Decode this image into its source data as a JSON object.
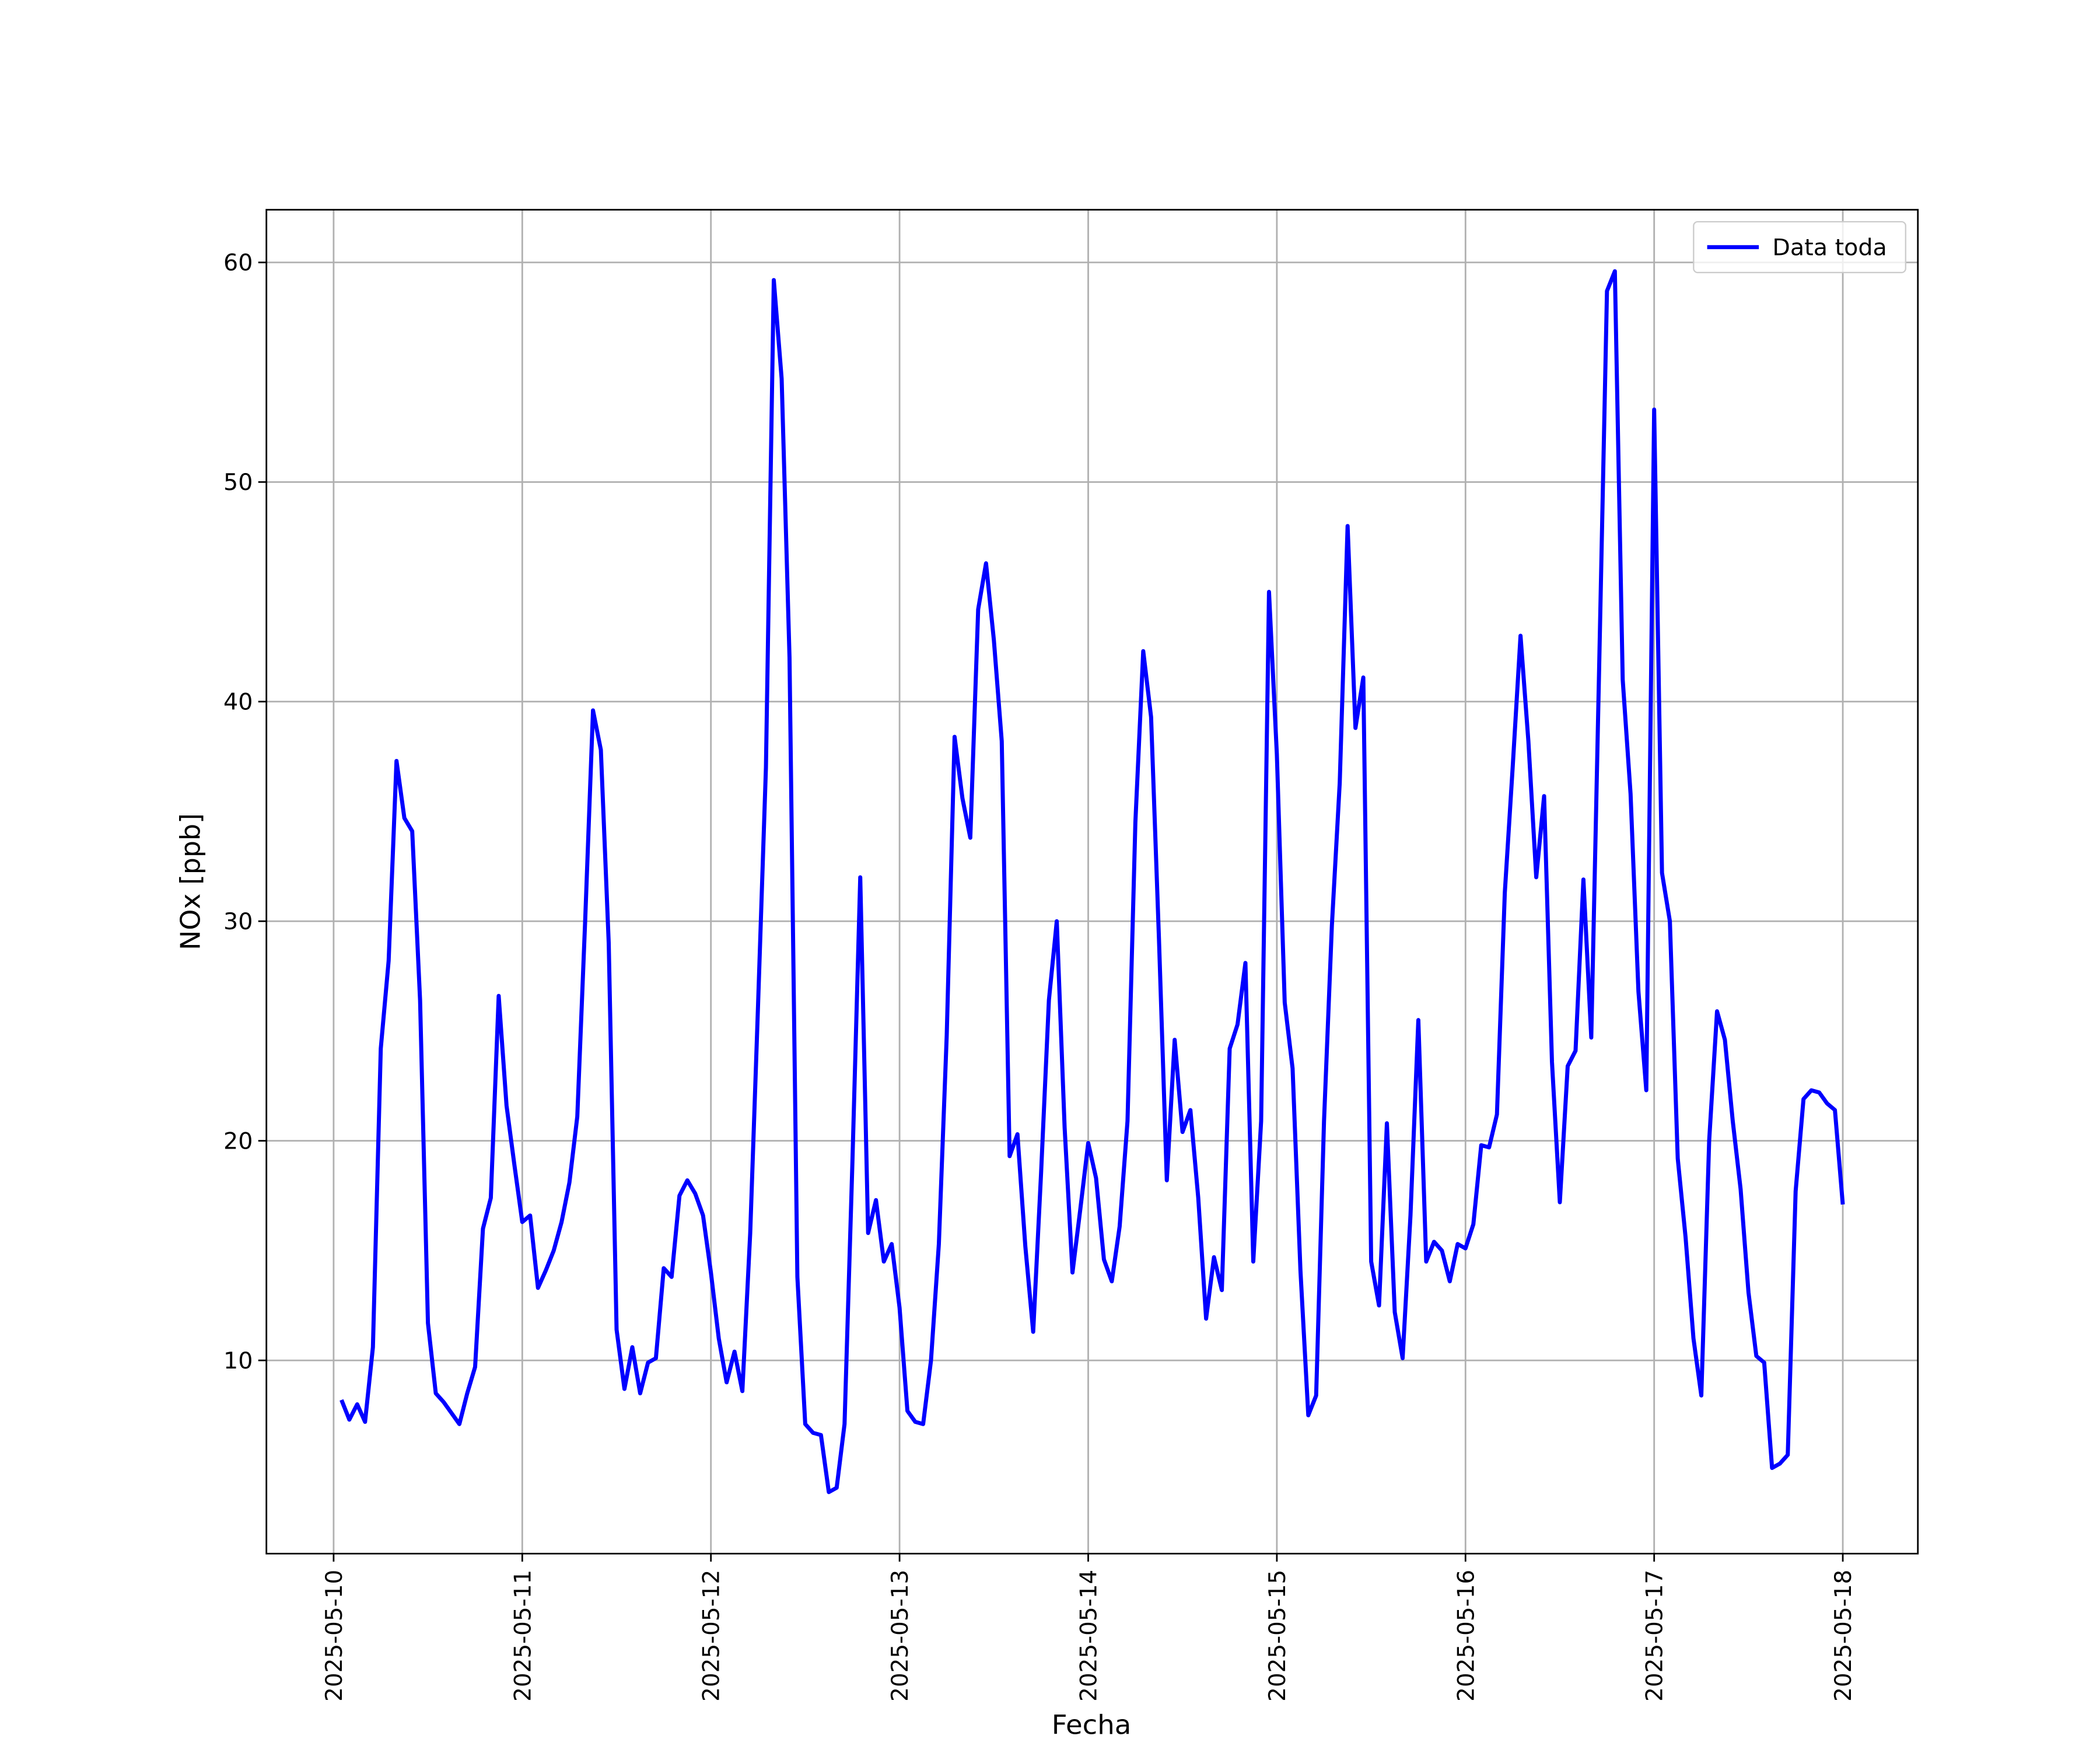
{
  "chart_data": {
    "type": "line",
    "x_label": "Fecha",
    "y_label": "NOx [ppb]",
    "x": [
      "2025-05-10 01:00",
      "2025-05-10 02:00",
      "2025-05-10 03:00",
      "2025-05-10 04:00",
      "2025-05-10 05:00",
      "2025-05-10 06:00",
      "2025-05-10 07:00",
      "2025-05-10 08:00",
      "2025-05-10 09:00",
      "2025-05-10 10:00",
      "2025-05-10 11:00",
      "2025-05-10 12:00",
      "2025-05-10 13:00",
      "2025-05-10 14:00",
      "2025-05-10 15:00",
      "2025-05-10 16:00",
      "2025-05-10 17:00",
      "2025-05-10 18:00",
      "2025-05-10 19:00",
      "2025-05-10 20:00",
      "2025-05-10 21:00",
      "2025-05-10 22:00",
      "2025-05-10 23:00",
      "2025-05-11 00:00",
      "2025-05-11 01:00",
      "2025-05-11 02:00",
      "2025-05-11 03:00",
      "2025-05-11 04:00",
      "2025-05-11 05:00",
      "2025-05-11 06:00",
      "2025-05-11 07:00",
      "2025-05-11 08:00",
      "2025-05-11 09:00",
      "2025-05-11 10:00",
      "2025-05-11 11:00",
      "2025-05-11 12:00",
      "2025-05-11 13:00",
      "2025-05-11 14:00",
      "2025-05-11 15:00",
      "2025-05-11 16:00",
      "2025-05-11 17:00",
      "2025-05-11 18:00",
      "2025-05-11 19:00",
      "2025-05-11 20:00",
      "2025-05-11 21:00",
      "2025-05-11 22:00",
      "2025-05-11 23:00",
      "2025-05-12 00:00",
      "2025-05-12 01:00",
      "2025-05-12 02:00",
      "2025-05-12 03:00",
      "2025-05-12 04:00",
      "2025-05-12 05:00",
      "2025-05-12 06:00",
      "2025-05-12 07:00",
      "2025-05-12 08:00",
      "2025-05-12 09:00",
      "2025-05-12 10:00",
      "2025-05-12 11:00",
      "2025-05-12 12:00",
      "2025-05-12 13:00",
      "2025-05-12 14:00",
      "2025-05-12 15:00",
      "2025-05-12 16:00",
      "2025-05-12 17:00",
      "2025-05-12 18:00",
      "2025-05-12 19:00",
      "2025-05-12 20:00",
      "2025-05-12 21:00",
      "2025-05-12 22:00",
      "2025-05-12 23:00",
      "2025-05-13 00:00",
      "2025-05-13 01:00",
      "2025-05-13 02:00",
      "2025-05-13 03:00",
      "2025-05-13 04:00",
      "2025-05-13 05:00",
      "2025-05-13 06:00",
      "2025-05-13 07:00",
      "2025-05-13 08:00",
      "2025-05-13 09:00",
      "2025-05-13 10:00",
      "2025-05-13 11:00",
      "2025-05-13 12:00",
      "2025-05-13 13:00",
      "2025-05-13 14:00",
      "2025-05-13 15:00",
      "2025-05-13 16:00",
      "2025-05-13 17:00",
      "2025-05-13 18:00",
      "2025-05-13 19:00",
      "2025-05-13 20:00",
      "2025-05-13 21:00",
      "2025-05-13 22:00",
      "2025-05-13 23:00",
      "2025-05-14 00:00",
      "2025-05-14 01:00",
      "2025-05-14 02:00",
      "2025-05-14 03:00",
      "2025-05-14 04:00",
      "2025-05-14 05:00",
      "2025-05-14 06:00",
      "2025-05-14 07:00",
      "2025-05-14 08:00",
      "2025-05-14 09:00",
      "2025-05-14 10:00",
      "2025-05-14 11:00",
      "2025-05-14 12:00",
      "2025-05-14 13:00",
      "2025-05-14 14:00",
      "2025-05-14 15:00",
      "2025-05-14 16:00",
      "2025-05-14 17:00",
      "2025-05-14 18:00",
      "2025-05-14 19:00",
      "2025-05-14 20:00",
      "2025-05-14 21:00",
      "2025-05-14 22:00",
      "2025-05-14 23:00",
      "2025-05-15 00:00",
      "2025-05-15 01:00",
      "2025-05-15 02:00",
      "2025-05-15 03:00",
      "2025-05-15 04:00",
      "2025-05-15 05:00",
      "2025-05-15 06:00",
      "2025-05-15 07:00",
      "2025-05-15 08:00",
      "2025-05-15 09:00",
      "2025-05-15 10:00",
      "2025-05-15 11:00",
      "2025-05-15 12:00",
      "2025-05-15 13:00",
      "2025-05-15 14:00",
      "2025-05-15 15:00",
      "2025-05-15 16:00",
      "2025-05-15 17:00",
      "2025-05-15 18:00",
      "2025-05-15 19:00",
      "2025-05-15 20:00",
      "2025-05-15 21:00",
      "2025-05-15 22:00",
      "2025-05-15 23:00",
      "2025-05-16 00:00",
      "2025-05-16 01:00",
      "2025-05-16 02:00",
      "2025-05-16 03:00",
      "2025-05-16 04:00",
      "2025-05-16 05:00",
      "2025-05-16 06:00",
      "2025-05-16 07:00",
      "2025-05-16 08:00",
      "2025-05-16 09:00",
      "2025-05-16 10:00",
      "2025-05-16 11:00",
      "2025-05-16 12:00",
      "2025-05-16 13:00",
      "2025-05-16 14:00",
      "2025-05-16 15:00",
      "2025-05-16 16:00",
      "2025-05-16 17:00",
      "2025-05-16 18:00",
      "2025-05-16 19:00",
      "2025-05-16 20:00",
      "2025-05-16 21:00",
      "2025-05-16 22:00",
      "2025-05-16 23:00",
      "2025-05-17 00:00",
      "2025-05-17 01:00",
      "2025-05-17 02:00",
      "2025-05-17 03:00",
      "2025-05-17 04:00",
      "2025-05-17 05:00",
      "2025-05-17 06:00",
      "2025-05-17 07:00",
      "2025-05-17 08:00",
      "2025-05-17 09:00",
      "2025-05-17 10:00",
      "2025-05-17 11:00",
      "2025-05-17 12:00",
      "2025-05-17 13:00",
      "2025-05-17 14:00",
      "2025-05-17 15:00",
      "2025-05-17 16:00",
      "2025-05-17 17:00",
      "2025-05-17 18:00",
      "2025-05-17 19:00",
      "2025-05-17 20:00",
      "2025-05-17 21:00",
      "2025-05-17 22:00",
      "2025-05-17 23:00",
      "2025-05-18 00:00"
    ],
    "series": [
      {
        "name": "Data toda",
        "color": "#0000ff",
        "values": [
          8.2,
          7.3,
          8.0,
          7.2,
          10.6,
          24.2,
          28.2,
          37.3,
          34.7,
          34.1,
          26.4,
          11.7,
          8.5,
          8.1,
          7.6,
          7.1,
          8.5,
          9.7,
          16.0,
          17.4,
          26.6,
          21.6,
          18.9,
          16.3,
          16.6,
          13.3,
          14.1,
          15.0,
          16.3,
          18.1,
          21.1,
          30.0,
          39.6,
          37.8,
          29.0,
          11.4,
          8.7,
          10.6,
          8.5,
          9.9,
          10.1,
          14.2,
          13.8,
          17.5,
          18.2,
          17.6,
          16.6,
          14.0,
          11.0,
          9.0,
          10.4,
          8.6,
          15.8,
          26.2,
          37.0,
          59.2,
          54.7,
          42.0,
          13.8,
          7.1,
          6.7,
          6.6,
          4.0,
          4.2,
          7.1,
          19.0,
          32.0,
          15.8,
          17.3,
          14.5,
          15.3,
          12.4,
          7.7,
          7.2,
          7.1,
          10.0,
          15.3,
          24.8,
          38.4,
          35.6,
          33.8,
          44.2,
          46.3,
          42.8,
          38.2,
          19.3,
          20.3,
          15.2,
          11.3,
          18.5,
          26.4,
          30.0,
          20.6,
          14.0,
          16.9,
          19.9,
          18.3,
          14.6,
          13.6,
          16.1,
          20.9,
          34.5,
          42.3,
          39.3,
          29.2,
          18.2,
          24.6,
          20.4,
          21.4,
          17.4,
          11.9,
          14.7,
          13.2,
          24.2,
          25.3,
          28.1,
          14.5,
          20.9,
          45.0,
          37.6,
          26.3,
          23.3,
          14.1,
          7.5,
          8.4,
          20.9,
          29.8,
          36.3,
          48.0,
          38.8,
          41.1,
          14.5,
          12.5,
          20.8,
          12.2,
          10.1,
          16.6,
          25.5,
          14.5,
          15.4,
          15.0,
          13.6,
          15.3,
          15.1,
          16.2,
          19.8,
          19.7,
          21.2,
          31.3,
          37.0,
          43.0,
          38.2,
          32.0,
          35.7,
          23.6,
          17.2,
          23.4,
          24.1,
          31.9,
          24.7,
          41.5,
          58.7,
          59.6,
          41.0,
          35.8,
          26.8,
          22.3,
          53.3,
          32.2,
          30.0,
          19.2,
          15.6,
          11.0,
          8.4,
          20.0,
          25.9,
          24.6,
          20.9,
          17.8,
          13.1,
          10.2,
          9.9,
          5.1,
          5.3,
          5.7,
          17.7,
          21.9,
          22.3,
          22.2,
          21.7,
          21.4,
          17.1
        ]
      }
    ],
    "xlim": [
      "2025-05-09 15:27",
      "2025-05-18 09:33"
    ],
    "xticks": [
      "2025-05-10",
      "2025-05-11",
      "2025-05-12",
      "2025-05-13",
      "2025-05-14",
      "2025-05-15",
      "2025-05-16",
      "2025-05-17",
      "2025-05-18"
    ],
    "ylim": [
      1.2,
      62.4
    ],
    "yticks": [
      10,
      20,
      30,
      40,
      50,
      60
    ],
    "grid": true,
    "legend": "upper right"
  }
}
